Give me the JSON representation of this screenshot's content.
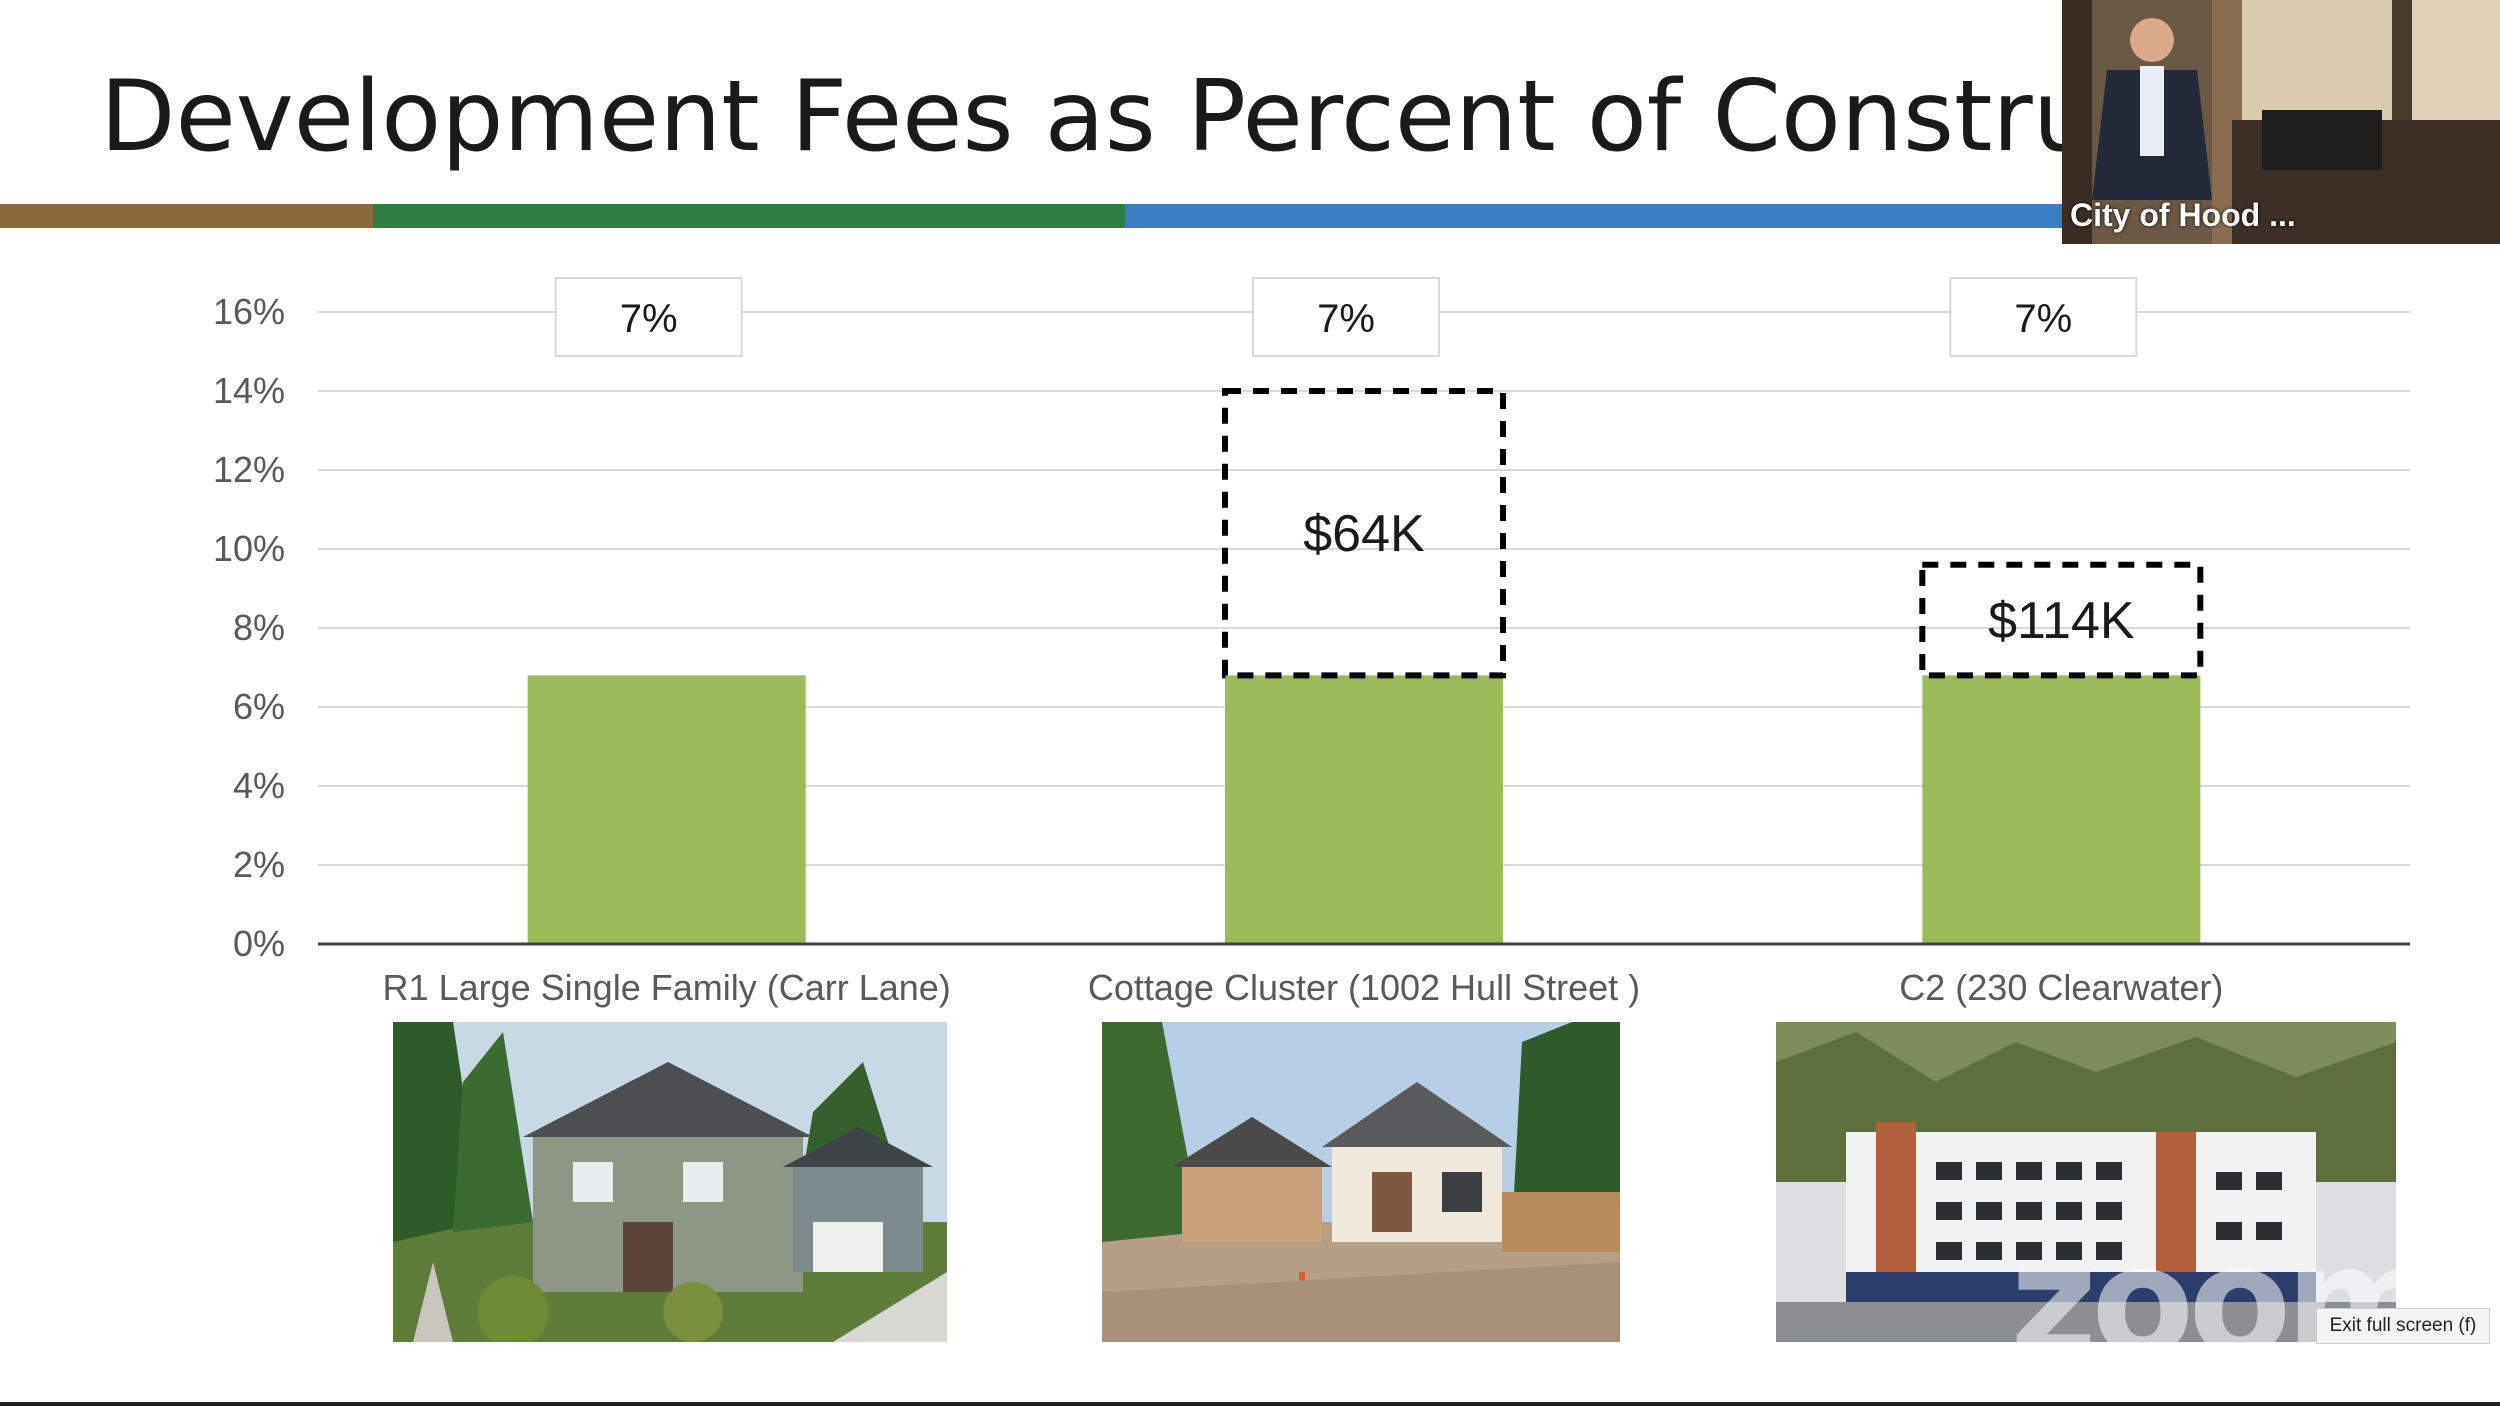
{
  "slide": {
    "title": "Development Fees as Percent of Construction '",
    "stripe_colors": [
      "#8a6a3c",
      "#2f7d44",
      "#3a7fc4"
    ]
  },
  "video_tile": {
    "label": "City of Hood ..."
  },
  "overlay": {
    "watermark": "zoom",
    "exit_fullscreen_label": "Exit full screen (f)"
  },
  "colors": {
    "bar": "#9bbb59",
    "grid": "#d9d9d9",
    "axis": "#404040"
  },
  "chart_data": {
    "type": "bar",
    "categories": [
      "R1 Large Single Family (Carr Lane)",
      "Cottage Cluster (1002 Hull Street )",
      "C2 (230 Clearwater)"
    ],
    "values": [
      6.8,
      6.8,
      6.8
    ],
    "value_labels": [
      "7%",
      "7%",
      "7%"
    ],
    "additional_fees": [
      {
        "category_index": 1,
        "top": 14.0,
        "label": "$64K"
      },
      {
        "category_index": 2,
        "top": 9.6,
        "label": "$114K"
      }
    ],
    "y_ticks": [
      "0%",
      "2%",
      "4%",
      "6%",
      "8%",
      "10%",
      "12%",
      "14%",
      "16%"
    ],
    "ylim": [
      0,
      16
    ],
    "grid": true,
    "legend": "none"
  }
}
